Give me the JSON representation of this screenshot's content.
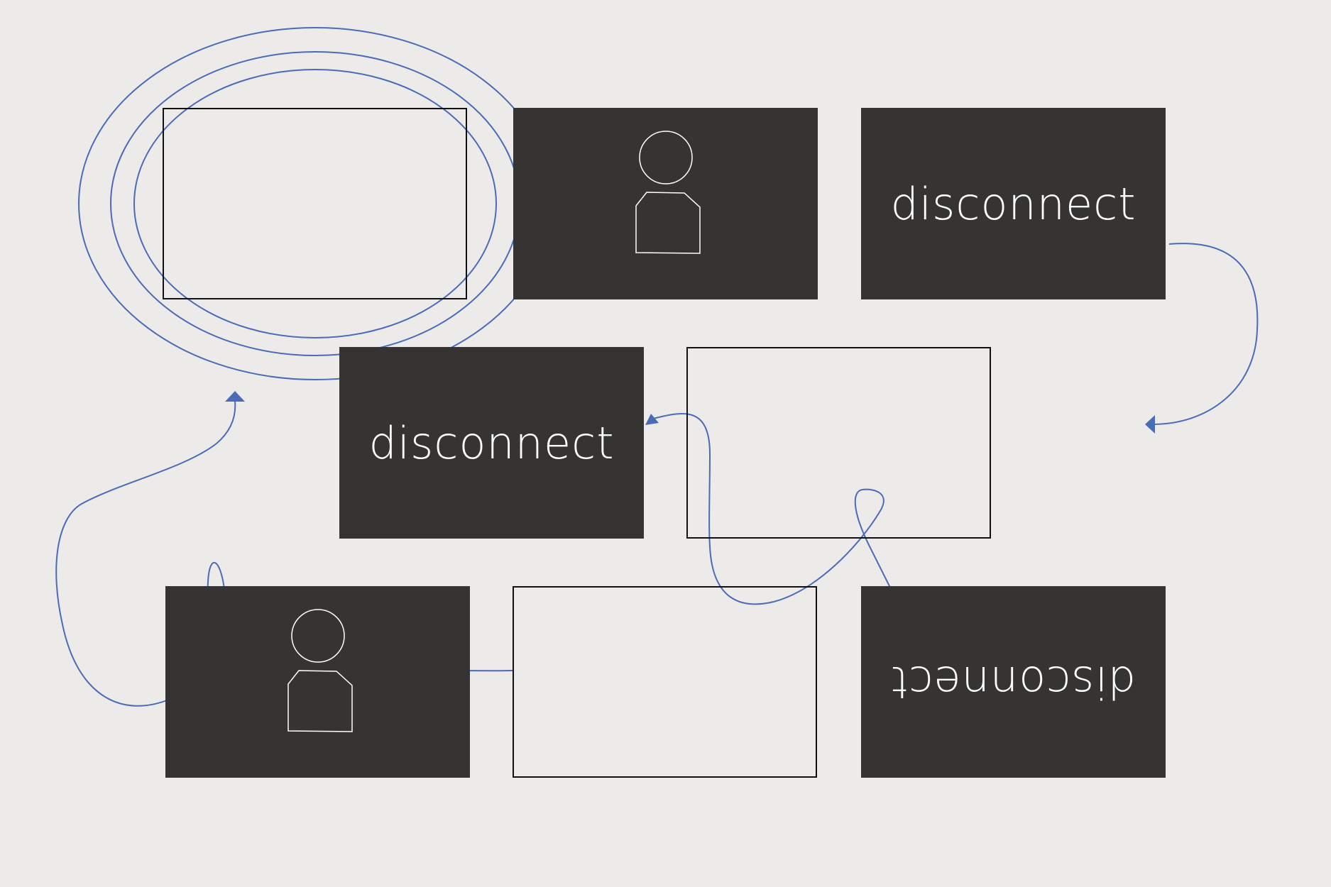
{
  "panels": [
    {
      "id": "p1",
      "kind": "empty"
    },
    {
      "id": "p2",
      "kind": "person",
      "icon": "person-icon"
    },
    {
      "id": "p3",
      "kind": "text",
      "text": "disconnect",
      "flipped": false
    },
    {
      "id": "p4",
      "kind": "text",
      "text": "disconnect",
      "flipped": false
    },
    {
      "id": "p5",
      "kind": "empty"
    },
    {
      "id": "p6",
      "kind": "person",
      "icon": "person-icon"
    },
    {
      "id": "p7",
      "kind": "empty"
    },
    {
      "id": "p8",
      "kind": "text",
      "text": "disconnect",
      "flipped": true
    }
  ],
  "colors": {
    "background": "#edebea",
    "dark_panel": "#353433",
    "connector": "#4a6bb8",
    "panel_text": "#ffffff",
    "outline": "#111111"
  },
  "connectors": [
    {
      "from": "p1",
      "to": "p1",
      "style": "concentric-ellipses"
    },
    {
      "from": "p3",
      "to": "right-margin",
      "arrowhead": true
    },
    {
      "from": "p5",
      "to": "p4",
      "arrowhead": true
    },
    {
      "from": "p8",
      "to": "p5",
      "arrowhead": false
    },
    {
      "from": "p7",
      "to": "p1",
      "arrowhead": true
    }
  ]
}
